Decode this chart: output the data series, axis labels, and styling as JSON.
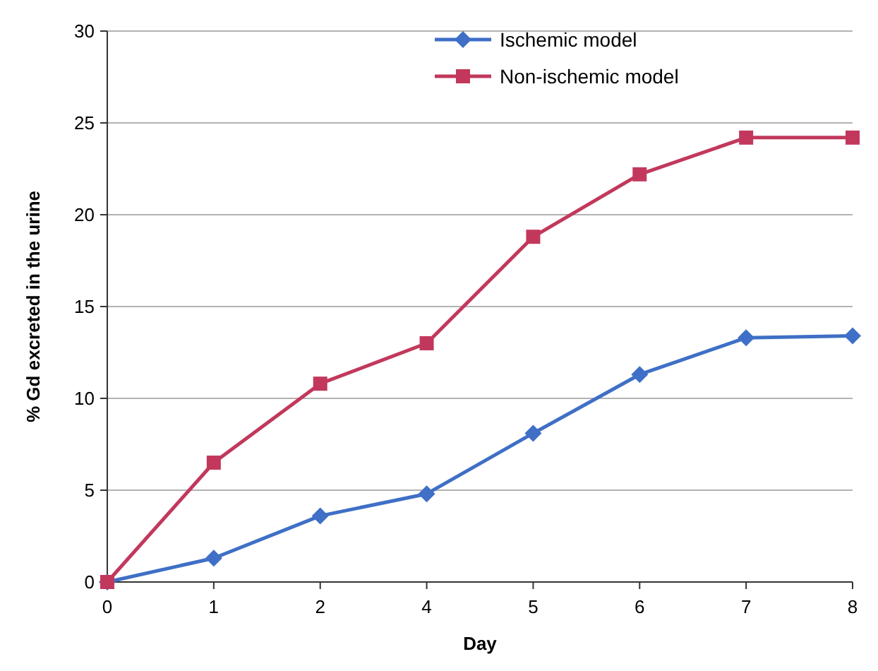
{
  "chart_data": {
    "type": "line",
    "xlabel": "Day",
    "ylabel": "% Gd excreted in the urine",
    "categories": [
      "0",
      "1",
      "2",
      "4",
      "5",
      "6",
      "7",
      "8"
    ],
    "series": [
      {
        "name": "Ischemic model",
        "color": "#3f6fc6",
        "marker": "diamond",
        "values": [
          0,
          1.3,
          3.6,
          4.8,
          8.1,
          11.3,
          13.3,
          13.4
        ]
      },
      {
        "name": "Non-ischemic model",
        "color": "#c2385c",
        "marker": "square",
        "values": [
          0,
          6.5,
          10.8,
          13,
          18.8,
          22.2,
          24.2,
          24.2
        ]
      }
    ],
    "ylim": [
      0,
      30
    ],
    "yticks": [
      0,
      5,
      10,
      15,
      20,
      25,
      30
    ],
    "grid": "y",
    "legend": "top"
  }
}
